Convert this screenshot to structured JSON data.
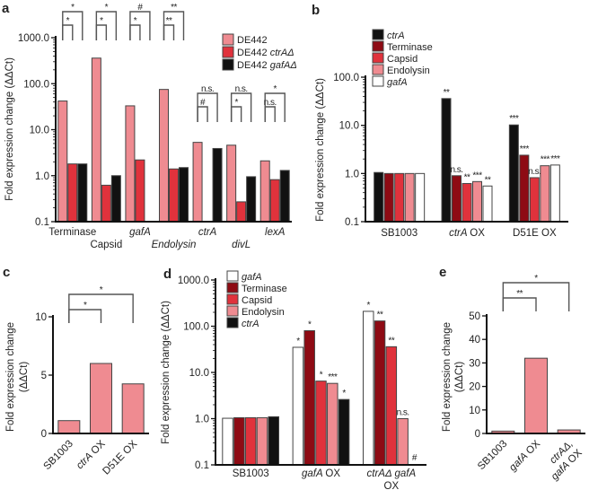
{
  "chart_data": [
    {
      "panel": "a",
      "panel_label": "a",
      "type": "bar",
      "yscale": "log",
      "ylim": [
        0.1,
        1000
      ],
      "yticks": [
        0.1,
        1,
        10,
        100,
        1000
      ],
      "ytick_labels": [
        "0.1",
        "1.0",
        "10.0",
        "100.0",
        "1000.0"
      ],
      "ylabel": [
        "Fold expression change (ΔΔCt)"
      ],
      "categories": [
        [
          "Terminase"
        ],
        [
          "Capsid"
        ],
        [
          "gafA"
        ],
        [
          "Endolysin"
        ],
        [
          "ctrA"
        ],
        [
          "divL"
        ],
        [
          "lexA"
        ]
      ],
      "legend": "top-right",
      "series": [
        {
          "name": "DE442",
          "color": "#ef8b91",
          "values": [
            42,
            360,
            33,
            75,
            5.3,
            4.6,
            2.1
          ]
        },
        {
          "name": "DE442 ctrAΔ",
          "color": "#e0323c",
          "values": [
            1.8,
            0.62,
            2.2,
            1.4,
            null,
            0.27,
            0.82
          ]
        },
        {
          "name": "DE442 gafAΔ",
          "color": "#111111",
          "values": [
            1.8,
            1.0,
            null,
            1.5,
            3.9,
            0.95,
            1.3
          ]
        }
      ],
      "brackets": [
        {
          "a": [
            0,
            0
          ],
          "b": [
            0,
            2
          ],
          "label": "*",
          "kind": "outer"
        },
        {
          "a": [
            0,
            0
          ],
          "b": [
            0,
            1
          ],
          "label": "*",
          "kind": "inner"
        },
        {
          "a": [
            1,
            0
          ],
          "b": [
            1,
            2
          ],
          "label": "*",
          "kind": "outer"
        },
        {
          "a": [
            1,
            0
          ],
          "b": [
            1,
            1
          ],
          "label": "*",
          "kind": "inner"
        },
        {
          "a": [
            2,
            0
          ],
          "b": [
            2,
            2
          ],
          "label": "#",
          "kind": "outer"
        },
        {
          "a": [
            2,
            0
          ],
          "b": [
            2,
            1
          ],
          "label": "*",
          "kind": "inner"
        },
        {
          "a": [
            3,
            0
          ],
          "b": [
            3,
            2
          ],
          "label": "**",
          "kind": "outer"
        },
        {
          "a": [
            3,
            0
          ],
          "b": [
            3,
            1
          ],
          "label": "**",
          "kind": "inner"
        },
        {
          "a": [
            4,
            0
          ],
          "b": [
            4,
            2
          ],
          "label": "n.s.",
          "kind": "outer"
        },
        {
          "a": [
            4,
            0
          ],
          "b": [
            4,
            1
          ],
          "label": "#",
          "kind": "inner"
        },
        {
          "a": [
            5,
            0
          ],
          "b": [
            5,
            2
          ],
          "label": "n.s.",
          "kind": "outer"
        },
        {
          "a": [
            5,
            0
          ],
          "b": [
            5,
            1
          ],
          "label": "*",
          "kind": "inner"
        },
        {
          "a": [
            6,
            0
          ],
          "b": [
            6,
            2
          ],
          "label": "*",
          "kind": "outer"
        },
        {
          "a": [
            6,
            0
          ],
          "b": [
            6,
            1
          ],
          "label": "n.s.",
          "kind": "inner"
        }
      ]
    },
    {
      "panel": "b",
      "panel_label": "b",
      "type": "bar",
      "yscale": "log",
      "ylim": [
        0.1,
        100
      ],
      "yticks": [
        0.1,
        1,
        10,
        100
      ],
      "ytick_labels": [
        "0.1",
        "1.0",
        "10.0",
        "100.0"
      ],
      "ylabel": [
        "Fold expression change (ΔΔCt)"
      ],
      "categories": [
        [
          "SB1003"
        ],
        [
          "ctrA OX"
        ],
        [
          "D51E OX"
        ]
      ],
      "legend": "top-left",
      "series": [
        {
          "name": "ctrA",
          "color": "#111111",
          "values": [
            1.05,
            36,
            10.2
          ]
        },
        {
          "name": "Terminase",
          "color": "#8e0b14",
          "values": [
            1.0,
            0.9,
            2.4
          ]
        },
        {
          "name": "Capsid",
          "color": "#e0323c",
          "values": [
            1.0,
            0.62,
            0.82
          ]
        },
        {
          "name": "Endolysin",
          "color": "#ef8b91",
          "values": [
            1.0,
            0.68,
            1.45
          ]
        },
        {
          "name": "gafA",
          "color": "#ffffff",
          "values": [
            1.0,
            0.55,
            1.5
          ]
        }
      ],
      "bar_annotations": [
        [
          "",
          "",
          "",
          "",
          ""
        ],
        [
          "**",
          "n.s.",
          "**",
          "***",
          "**"
        ],
        [
          "***",
          "***",
          "n.s.",
          "***",
          "***"
        ]
      ]
    },
    {
      "panel": "c",
      "panel_label": "c",
      "type": "bar",
      "yscale": "linear",
      "ylim": [
        0,
        10
      ],
      "yticks": [
        0,
        5,
        10
      ],
      "ytick_labels": [
        "0",
        "5",
        "10"
      ],
      "ylabel": [
        "Fold expression change",
        "(ΔΔCt)"
      ],
      "categories": [
        [
          "SB1003"
        ],
        [
          "ctrA OX"
        ],
        [
          "D51E OX"
        ]
      ],
      "series": [
        {
          "name": "gafA",
          "color": "#ef8b91",
          "values": [
            1.1,
            6.0,
            4.25
          ]
        }
      ],
      "brackets": [
        {
          "a": [
            0,
            0
          ],
          "b": [
            1,
            0
          ],
          "label": "*",
          "kind": "inner"
        },
        {
          "a": [
            0,
            0
          ],
          "b": [
            2,
            0
          ],
          "label": "*",
          "kind": "outer"
        }
      ]
    },
    {
      "panel": "d",
      "panel_label": "d",
      "type": "bar",
      "yscale": "log",
      "ylim": [
        0.1,
        1000
      ],
      "yticks": [
        0.1,
        1,
        10,
        100,
        1000
      ],
      "ytick_labels": [
        "0.1",
        "1.0",
        "10.0",
        "100.0",
        "1000.0"
      ],
      "ylabel": [
        "Fold expression change (ΔΔCt)"
      ],
      "categories": [
        [
          "SB1003"
        ],
        [
          "gafA OX"
        ],
        [
          "ctrAΔ gafA",
          "OX"
        ]
      ],
      "legend": "top-left",
      "series": [
        {
          "name": "gafA",
          "color": "#ffffff",
          "values": [
            1.02,
            35,
            210
          ]
        },
        {
          "name": "Terminase",
          "color": "#8e0b14",
          "values": [
            1.05,
            80,
            130
          ]
        },
        {
          "name": "Capsid",
          "color": "#e0323c",
          "values": [
            1.05,
            6.5,
            36
          ]
        },
        {
          "name": "Endolysin",
          "color": "#ef8b91",
          "values": [
            1.05,
            5.8,
            1.0
          ]
        },
        {
          "name": "ctrA",
          "color": "#111111",
          "values": [
            1.1,
            2.6,
            null
          ]
        }
      ],
      "bar_annotations": [
        [
          "",
          "",
          "",
          "",
          ""
        ],
        [
          "*",
          "*",
          "*",
          "***",
          "*"
        ],
        [
          "*",
          "**",
          "**",
          "n.s.",
          "#"
        ]
      ]
    },
    {
      "panel": "e",
      "panel_label": "e",
      "type": "bar",
      "yscale": "linear",
      "ylim": [
        0,
        50
      ],
      "yticks": [
        0,
        10,
        20,
        30,
        40,
        50
      ],
      "ytick_labels": [
        "0",
        "10",
        "20",
        "30",
        "40",
        "50"
      ],
      "ylabel": [
        "Fold expression change",
        "(ΔΔCt)"
      ],
      "categories": [
        [
          "SB1003"
        ],
        [
          "gafA OX"
        ],
        [
          "ctrAΔ,",
          "gafA OX"
        ]
      ],
      "series": [
        {
          "name": "Terminase",
          "color": "#ef8b91",
          "values": [
            1.0,
            32,
            1.5
          ]
        }
      ],
      "brackets": [
        {
          "a": [
            0,
            0
          ],
          "b": [
            1,
            0
          ],
          "label": "**",
          "kind": "inner"
        },
        {
          "a": [
            0,
            0
          ],
          "b": [
            2,
            0
          ],
          "label": "*",
          "kind": "outer"
        }
      ]
    }
  ]
}
